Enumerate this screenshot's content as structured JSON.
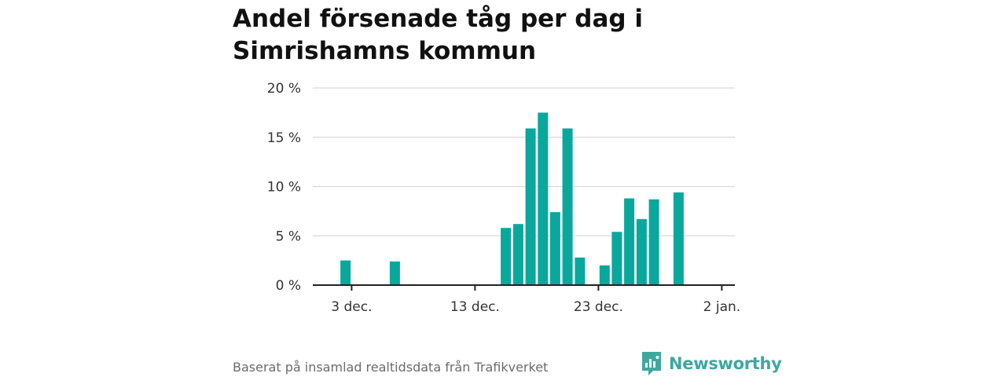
{
  "title": "Andel försenade tåg per dag i Simrishamns kommun",
  "source": "Baserat på insamlad realtidsdata från Trafikverket",
  "brand": "Newsworthy",
  "colors": {
    "bar": "#0aa89c",
    "brand": "#3ea89f",
    "grid": "#d9d9d9",
    "axis": "#222222"
  },
  "chart_data": {
    "type": "bar",
    "x_axis": {
      "type": "date",
      "ticks": [
        "3 dec.",
        "13 dec.",
        "23 dec.",
        "2 jan."
      ]
    },
    "y_axis": {
      "ticks": [
        "0 %",
        "5 %",
        "10 %",
        "15 %",
        "20 %"
      ],
      "ylim": [
        0,
        20
      ],
      "unit": "%"
    },
    "grid": true,
    "bars": [
      {
        "date": "2 dec.",
        "value": 2.5
      },
      {
        "date": "6 dec.",
        "value": 2.4
      },
      {
        "date": "15 dec.",
        "value": 5.8
      },
      {
        "date": "16 dec.",
        "value": 6.2
      },
      {
        "date": "17 dec.",
        "value": 15.9
      },
      {
        "date": "18 dec.",
        "value": 17.5
      },
      {
        "date": "19 dec.",
        "value": 7.4
      },
      {
        "date": "20 dec.",
        "value": 15.9
      },
      {
        "date": "21 dec.",
        "value": 2.8
      },
      {
        "date": "23 dec.",
        "value": 2.0
      },
      {
        "date": "24 dec.",
        "value": 5.4
      },
      {
        "date": "25 dec.",
        "value": 8.8
      },
      {
        "date": "26 dec.",
        "value": 6.7
      },
      {
        "date": "27 dec.",
        "value": 8.7
      },
      {
        "date": "29 dec.",
        "value": 9.4
      }
    ]
  }
}
